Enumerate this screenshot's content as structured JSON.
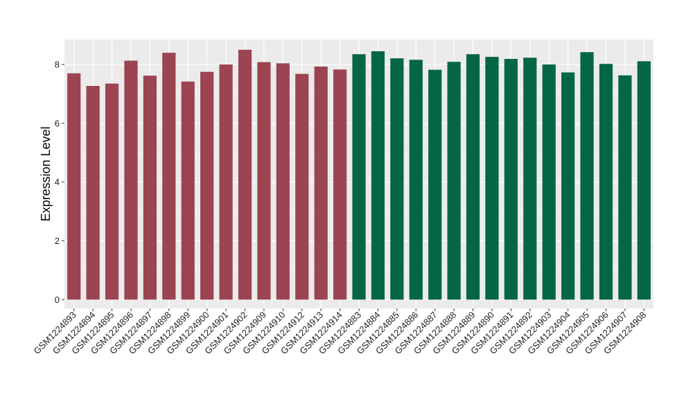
{
  "chart_data": {
    "type": "bar",
    "title": "",
    "xlabel": "",
    "ylabel": "Expression Level",
    "ylim": [
      -0.3,
      8.85
    ],
    "yticks": [
      0,
      2,
      4,
      6,
      8
    ],
    "grid": true,
    "categories": [
      "GSM1224893",
      "GSM1224894",
      "GSM1224895",
      "GSM1224896",
      "GSM1224897",
      "GSM1224898",
      "GSM1224899",
      "GSM1224900",
      "GSM1224901",
      "GSM1224902",
      "GSM1224909",
      "GSM1224910",
      "GSM1224912",
      "GSM1224913",
      "GSM1224914",
      "GSM1224883",
      "GSM1224884",
      "GSM1224885",
      "GSM1224886",
      "GSM1224887",
      "GSM1224888",
      "GSM1224889",
      "GSM1224890",
      "GSM1224891",
      "GSM1224892",
      "GSM1224903",
      "GSM1224904",
      "GSM1224905",
      "GSM1224906",
      "GSM1224907",
      "GSM1224908"
    ],
    "values": [
      7.7,
      7.27,
      7.35,
      8.13,
      7.62,
      8.4,
      7.42,
      7.75,
      8.0,
      8.5,
      8.08,
      8.04,
      7.68,
      7.93,
      7.83,
      8.35,
      8.45,
      8.21,
      8.16,
      7.82,
      8.09,
      8.35,
      8.26,
      8.19,
      8.23,
      8.0,
      7.73,
      8.42,
      8.02,
      7.63,
      8.11
    ],
    "bar_colors": [
      "#9b4452",
      "#9b4452",
      "#9b4452",
      "#9b4452",
      "#9b4452",
      "#9b4452",
      "#9b4452",
      "#9b4452",
      "#9b4452",
      "#9b4452",
      "#9b4452",
      "#9b4452",
      "#9b4452",
      "#9b4452",
      "#9b4452",
      "#046644",
      "#046644",
      "#046644",
      "#046644",
      "#046644",
      "#046644",
      "#046644",
      "#046644",
      "#046644",
      "#046644",
      "#046644",
      "#046644",
      "#046644",
      "#046644",
      "#046644",
      "#046644"
    ],
    "panel_color": "#ebebeb",
    "grid_color": "#ffffff"
  }
}
